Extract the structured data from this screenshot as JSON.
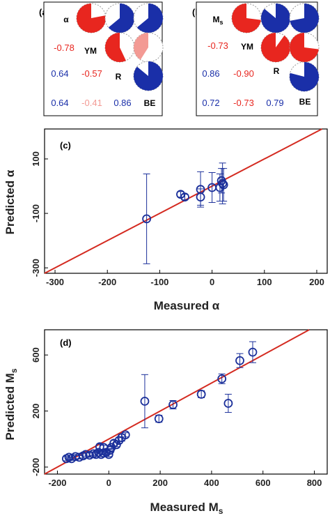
{
  "chart_data": [
    {
      "type": "correlation-matrix",
      "panel": "(a)",
      "variables": [
        "α",
        "YM",
        "R",
        "BE"
      ],
      "correlations": [
        {
          "row": "YM",
          "col": "α",
          "text": "-0.78",
          "value": -0.78
        },
        {
          "row": "R",
          "col": "α",
          "text": "0.64",
          "value": 0.64
        },
        {
          "row": "R",
          "col": "YM",
          "text": "-0.57",
          "value": -0.57
        },
        {
          "row": "BE",
          "col": "α",
          "text": "0.64",
          "value": 0.64
        },
        {
          "row": "BE",
          "col": "YM",
          "text": "-0.41",
          "value": -0.41
        },
        {
          "row": "BE",
          "col": "R",
          "text": "0.86",
          "value": 0.86
        }
      ],
      "colors": {
        "positive": "#1a2fa8",
        "negative": "#e8261f",
        "weak_negative": "#f39a94"
      }
    },
    {
      "type": "correlation-matrix",
      "panel": "(b)",
      "variables": [
        "Ms",
        "YM",
        "R",
        "BE"
      ],
      "correlations": [
        {
          "row": "YM",
          "col": "Ms",
          "text": "-0.73",
          "value": -0.73
        },
        {
          "row": "R",
          "col": "Ms",
          "text": "0.86",
          "value": 0.86
        },
        {
          "row": "R",
          "col": "YM",
          "text": "-0.90",
          "value": -0.9
        },
        {
          "row": "BE",
          "col": "Ms",
          "text": "0.72",
          "value": 0.72
        },
        {
          "row": "BE",
          "col": "YM",
          "text": "-0.73",
          "value": -0.73
        },
        {
          "row": "BE",
          "col": "R",
          "text": "0.79",
          "value": 0.79
        }
      ]
    },
    {
      "type": "scatter",
      "panel": "(c)",
      "xlabel": "Measured α",
      "ylabel": "Predicted α",
      "xlim": [
        -320,
        220
      ],
      "ylim": [
        -320,
        210
      ],
      "xticks": [
        "-300",
        "-200",
        "-100",
        "0",
        "100",
        "200"
      ],
      "xtick_values": [
        -300,
        -200,
        -100,
        0,
        100,
        200
      ],
      "yticks": [
        "-300",
        "-100",
        "100"
      ],
      "ytick_values": [
        -300,
        -100,
        100
      ],
      "identity_line": true,
      "points": [
        {
          "x": -125,
          "y": -120,
          "err": 165
        },
        {
          "x": -60,
          "y": -30,
          "err": 10
        },
        {
          "x": -52,
          "y": -40,
          "err": 10
        },
        {
          "x": -22,
          "y": -40,
          "err": 30
        },
        {
          "x": -22,
          "y": -12,
          "err": 65
        },
        {
          "x": 0,
          "y": -5,
          "err": 55
        },
        {
          "x": 15,
          "y": -5,
          "err": 50
        },
        {
          "x": 18,
          "y": 20,
          "err": 45
        },
        {
          "x": 20,
          "y": 10,
          "err": 75
        },
        {
          "x": 22,
          "y": 5,
          "err": 60
        }
      ],
      "colors": {
        "points": "#1a2f9a",
        "line": "#d42a20"
      }
    },
    {
      "type": "scatter",
      "panel": "(d)",
      "xlabel": "Measured Ms",
      "ylabel": "Predicted Ms",
      "xlim": [
        -250,
        850
      ],
      "ylim": [
        -250,
        780
      ],
      "xticks": [
        "-200",
        "0",
        "200",
        "400",
        "600",
        "800"
      ],
      "xtick_values": [
        -200,
        0,
        200,
        400,
        600,
        800
      ],
      "yticks": [
        "-200",
        "200",
        "600"
      ],
      "ytick_values": [
        -200,
        200,
        600
      ],
      "identity_line": true,
      "points": [
        {
          "x": -165,
          "y": -140,
          "err": 15
        },
        {
          "x": -155,
          "y": -130,
          "err": 15
        },
        {
          "x": -145,
          "y": -140,
          "err": 12
        },
        {
          "x": -130,
          "y": -125,
          "err": 15
        },
        {
          "x": -115,
          "y": -130,
          "err": 12
        },
        {
          "x": -100,
          "y": -120,
          "err": 15
        },
        {
          "x": -90,
          "y": -110,
          "err": 12
        },
        {
          "x": -75,
          "y": -115,
          "err": 15
        },
        {
          "x": -60,
          "y": -105,
          "err": 12
        },
        {
          "x": -50,
          "y": -110,
          "err": 15
        },
        {
          "x": -40,
          "y": -95,
          "err": 12
        },
        {
          "x": -30,
          "y": -110,
          "err": 15
        },
        {
          "x": -20,
          "y": -100,
          "err": 12
        },
        {
          "x": -10,
          "y": -95,
          "err": 15
        },
        {
          "x": 0,
          "y": -110,
          "err": 15
        },
        {
          "x": 5,
          "y": -80,
          "err": 12
        },
        {
          "x": -35,
          "y": -55,
          "err": 20
        },
        {
          "x": -20,
          "y": -60,
          "err": 15
        },
        {
          "x": 10,
          "y": -60,
          "err": 15
        },
        {
          "x": 20,
          "y": -30,
          "err": 20
        },
        {
          "x": 30,
          "y": -40,
          "err": 15
        },
        {
          "x": 40,
          "y": -10,
          "err": 20
        },
        {
          "x": 50,
          "y": 10,
          "err": 25
        },
        {
          "x": 65,
          "y": 30,
          "err": 15
        },
        {
          "x": 140,
          "y": 270,
          "err": 190
        },
        {
          "x": 195,
          "y": 145,
          "err": 25
        },
        {
          "x": 250,
          "y": 245,
          "err": 30
        },
        {
          "x": 360,
          "y": 320,
          "err": 25
        },
        {
          "x": 440,
          "y": 430,
          "err": 35
        },
        {
          "x": 465,
          "y": 255,
          "err": 65
        },
        {
          "x": 510,
          "y": 560,
          "err": 50
        },
        {
          "x": 560,
          "y": 620,
          "err": 75
        }
      ],
      "colors": {
        "points": "#1a2f9a",
        "line": "#d42a20"
      }
    }
  ]
}
